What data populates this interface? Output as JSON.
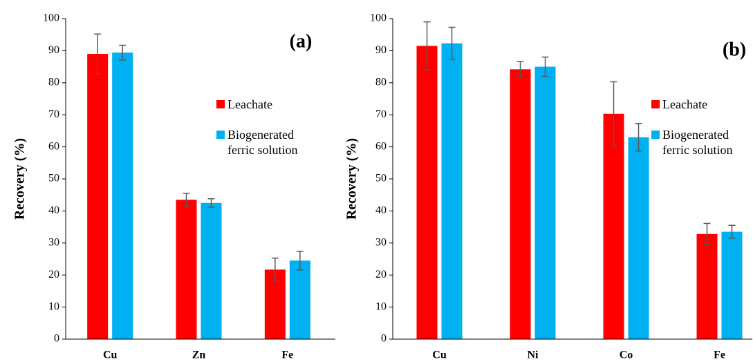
{
  "chart_data": [
    {
      "type": "bar",
      "panel_label": "(a)",
      "ylabel": "Recovery (%)",
      "categories": [
        "Cu",
        "Zn",
        "Fe"
      ],
      "series": [
        {
          "name": "Leachate",
          "color": "#ff0000",
          "values": [
            89,
            43.5,
            21.7
          ],
          "errors": [
            6.2,
            2,
            3.6
          ]
        },
        {
          "name": "Biogenerated ferric solution",
          "color": "#00b0f0",
          "values": [
            89.4,
            42.5,
            24.5
          ],
          "errors": [
            2.3,
            1.3,
            2.9
          ]
        }
      ],
      "ylim": [
        0,
        100
      ],
      "yticks": [
        0,
        10,
        20,
        30,
        40,
        50,
        60,
        70,
        80,
        90,
        100
      ]
    },
    {
      "type": "bar",
      "panel_label": "(b)",
      "ylabel": "Recovery (%)",
      "categories": [
        "Cu",
        "Ni",
        "Co",
        "Fe"
      ],
      "series": [
        {
          "name": "Leachate",
          "color": "#ff0000",
          "values": [
            91.5,
            84.2,
            70.3,
            32.8
          ],
          "errors": [
            7.5,
            2.4,
            10,
            3.3
          ]
        },
        {
          "name": "Biogenerated ferric solution",
          "color": "#00b0f0",
          "values": [
            92.3,
            85,
            63,
            33.5
          ],
          "errors": [
            5,
            3,
            4.3,
            2
          ]
        }
      ],
      "ylim": [
        0,
        100
      ],
      "yticks": [
        0,
        10,
        20,
        30,
        40,
        50,
        60,
        70,
        80,
        90,
        100
      ]
    }
  ]
}
